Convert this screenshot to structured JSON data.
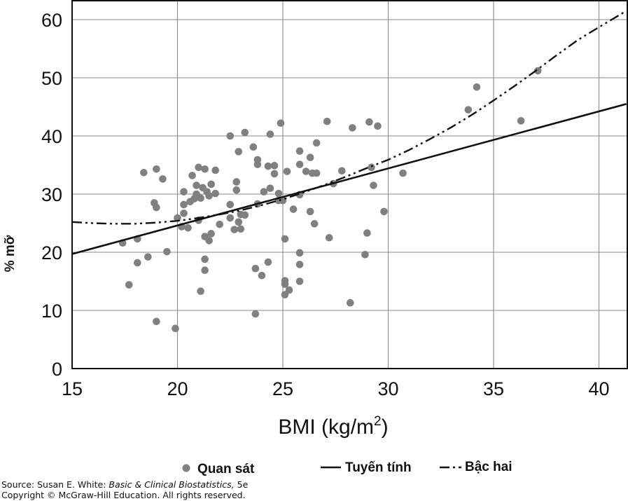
{
  "chart_data": {
    "type": "scatter",
    "xlabel": "BMI (kg/m",
    "xlabel_sup": "2",
    "xlabel_close": ")",
    "ylabel": "% mỡ",
    "xlim": [
      15,
      41.3
    ],
    "ylim": [
      0,
      63
    ],
    "xticks": [
      15,
      20,
      25,
      30,
      35,
      40
    ],
    "yticks": [
      0,
      10,
      20,
      30,
      40,
      50,
      60
    ],
    "grid": true,
    "legend_position": "bottom",
    "points_label": "Quan sát",
    "points_color": "#808080",
    "points": [
      [
        17.4,
        21.6
      ],
      [
        17.7,
        14.4
      ],
      [
        18.1,
        18.2
      ],
      [
        18.1,
        22.3
      ],
      [
        18.4,
        33.7
      ],
      [
        18.6,
        19.2
      ],
      [
        18.9,
        28.5
      ],
      [
        19.0,
        27.7
      ],
      [
        19.0,
        34.3
      ],
      [
        19.0,
        8.1
      ],
      [
        19.3,
        32.6
      ],
      [
        19.5,
        20.1
      ],
      [
        19.9,
        6.9
      ],
      [
        20.0,
        25.9
      ],
      [
        20.2,
        24.4
      ],
      [
        20.3,
        30.4
      ],
      [
        20.3,
        26.7
      ],
      [
        20.3,
        28.2
      ],
      [
        20.5,
        24.2
      ],
      [
        20.6,
        28.7
      ],
      [
        20.7,
        33.2
      ],
      [
        20.8,
        29.2
      ],
      [
        20.9,
        30.0
      ],
      [
        20.9,
        31.5
      ],
      [
        21.0,
        25.5
      ],
      [
        21.0,
        34.6
      ],
      [
        21.1,
        13.3
      ],
      [
        21.1,
        29.3
      ],
      [
        21.2,
        31.1
      ],
      [
        21.3,
        22.7
      ],
      [
        21.3,
        18.8
      ],
      [
        21.3,
        16.9
      ],
      [
        21.3,
        34.3
      ],
      [
        21.4,
        30.4
      ],
      [
        21.5,
        29.7
      ],
      [
        21.5,
        22.0
      ],
      [
        21.6,
        23.2
      ],
      [
        21.6,
        31.7
      ],
      [
        21.8,
        30.1
      ],
      [
        21.8,
        34.1
      ],
      [
        22.0,
        24.8
      ],
      [
        22.5,
        25.9
      ],
      [
        22.5,
        28.2
      ],
      [
        22.5,
        40.0
      ],
      [
        22.7,
        23.9
      ],
      [
        22.8,
        30.7
      ],
      [
        22.8,
        32.1
      ],
      [
        22.9,
        25.2
      ],
      [
        22.9,
        37.3
      ],
      [
        23.0,
        26.5
      ],
      [
        23.0,
        24.0
      ],
      [
        23.2,
        40.6
      ],
      [
        23.2,
        26.4
      ],
      [
        23.6,
        38.1
      ],
      [
        23.7,
        17.2
      ],
      [
        23.7,
        9.4
      ],
      [
        23.8,
        35.9
      ],
      [
        23.8,
        35.1
      ],
      [
        23.8,
        28.3
      ],
      [
        24.0,
        16.0
      ],
      [
        24.1,
        30.4
      ],
      [
        24.3,
        18.3
      ],
      [
        24.3,
        34.8
      ],
      [
        24.4,
        40.3
      ],
      [
        24.4,
        31.0
      ],
      [
        24.6,
        33.5
      ],
      [
        24.6,
        34.9
      ],
      [
        24.8,
        30.1
      ],
      [
        24.8,
        28.9
      ],
      [
        24.9,
        42.2
      ],
      [
        25.0,
        28.9
      ],
      [
        25.1,
        22.3
      ],
      [
        25.1,
        15.1
      ],
      [
        25.1,
        14.5
      ],
      [
        25.1,
        12.7
      ],
      [
        25.2,
        33.9
      ],
      [
        25.3,
        13.5
      ],
      [
        25.5,
        27.4
      ],
      [
        25.8,
        37.4
      ],
      [
        25.8,
        35.1
      ],
      [
        25.8,
        29.9
      ],
      [
        25.8,
        19.9
      ],
      [
        25.8,
        17.9
      ],
      [
        25.8,
        15.0
      ],
      [
        26.1,
        33.9
      ],
      [
        26.3,
        27.0
      ],
      [
        26.3,
        36.3
      ],
      [
        26.4,
        33.6
      ],
      [
        26.5,
        24.9
      ],
      [
        26.6,
        33.6
      ],
      [
        26.6,
        38.8
      ],
      [
        27.1,
        42.5
      ],
      [
        27.2,
        22.5
      ],
      [
        27.4,
        31.8
      ],
      [
        27.8,
        34.0
      ],
      [
        28.2,
        11.3
      ],
      [
        28.3,
        41.4
      ],
      [
        28.9,
        19.6
      ],
      [
        29.0,
        23.3
      ],
      [
        29.1,
        42.4
      ],
      [
        29.2,
        34.6
      ],
      [
        29.3,
        31.5
      ],
      [
        29.5,
        41.7
      ],
      [
        29.8,
        27.0
      ],
      [
        30.7,
        33.6
      ],
      [
        33.8,
        44.5
      ],
      [
        34.2,
        48.4
      ],
      [
        36.3,
        42.6
      ],
      [
        37.1,
        51.2
      ]
    ],
    "linear_label": "Tuyến tính",
    "linear": {
      "x0": 15,
      "y0": 19.7,
      "x1": 41.3,
      "y1": 45.5
    },
    "quadratic_label": "Bậc hai",
    "quadratic": [
      [
        15,
        25.2
      ],
      [
        16,
        25.0
      ],
      [
        17,
        24.9
      ],
      [
        18,
        24.9
      ],
      [
        19,
        25.1
      ],
      [
        20,
        25.4
      ],
      [
        21,
        25.9
      ],
      [
        22,
        26.5
      ],
      [
        23,
        27.2
      ],
      [
        24,
        28.1
      ],
      [
        25,
        29.1
      ],
      [
        26,
        30.3
      ],
      [
        27,
        31.6
      ],
      [
        28,
        33.0
      ],
      [
        29,
        34.5
      ],
      [
        30,
        35.9
      ],
      [
        31,
        37.6
      ],
      [
        32,
        39.5
      ],
      [
        33,
        41.5
      ],
      [
        34,
        43.7
      ],
      [
        35,
        46.1
      ],
      [
        36,
        48.6
      ],
      [
        37,
        51.2
      ],
      [
        38,
        53.9
      ],
      [
        39,
        56.5
      ],
      [
        40,
        58.7
      ],
      [
        41.3,
        61.5
      ]
    ]
  },
  "source": {
    "prefix": "Source: Susan E. White: ",
    "book": "Basic & Clinical Biostatistics,",
    "edition": " 5e",
    "copyright": "Copyright © McGraw-Hill Education. All rights reserved."
  }
}
